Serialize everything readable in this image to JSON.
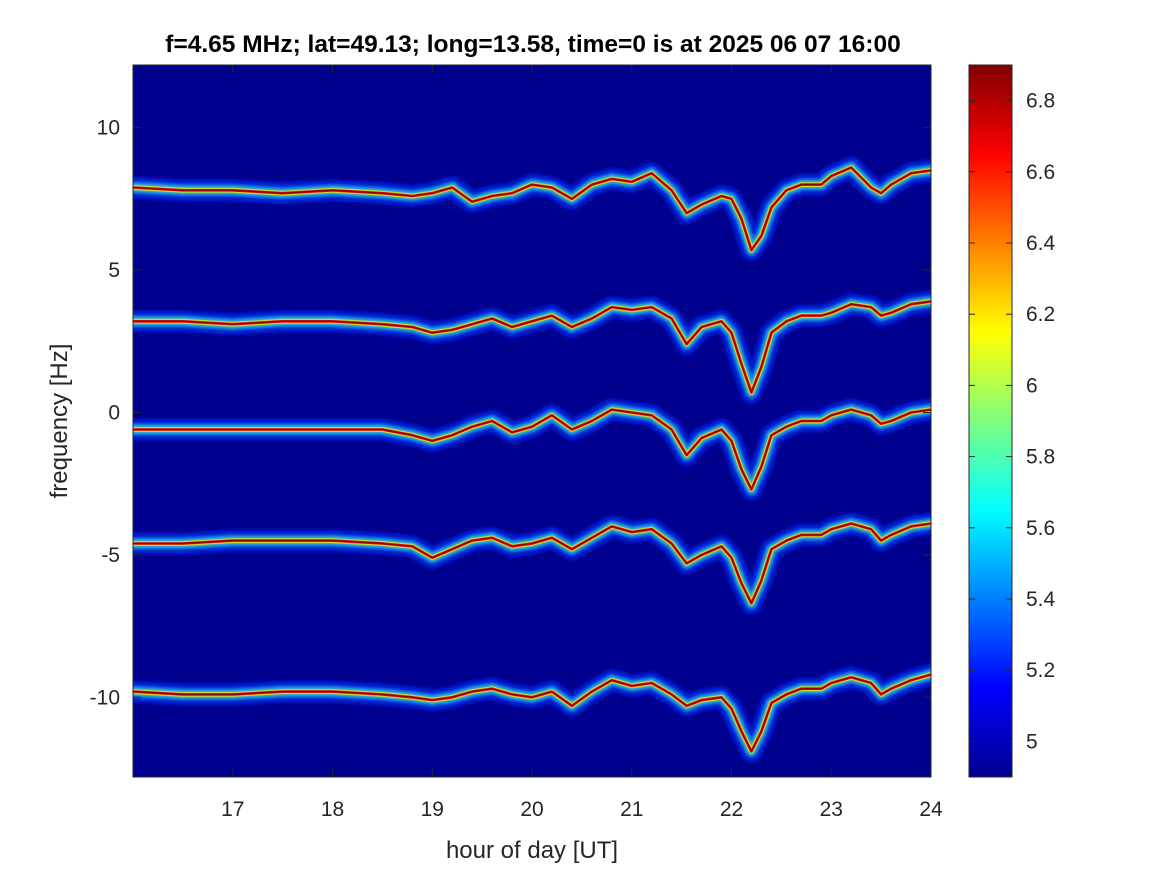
{
  "chart_data": {
    "type": "heatmap",
    "title": "f=4.65 MHz;  lat=49.13; long=13.58, time=0 is at 2025 06 07 16:00",
    "xlabel": "hour of day [UT]",
    "ylabel": "frequency [Hz]",
    "xlim": [
      16,
      24
    ],
    "ylim": [
      -12.8,
      12.2
    ],
    "xticks": [
      17,
      18,
      19,
      20,
      21,
      22,
      23,
      24
    ],
    "xtick_labels": [
      "17",
      "18",
      "19",
      "20",
      "21",
      "22",
      "23",
      "24"
    ],
    "yticks": [
      10,
      5,
      0,
      -5,
      -10
    ],
    "ytick_labels": [
      "10",
      "5",
      "0",
      "-5",
      "-10"
    ],
    "colorbar": {
      "colormap": "jet",
      "range": [
        4.9,
        6.9
      ],
      "ticks": [
        6.8,
        6.6,
        6.4,
        6.2,
        6.0,
        5.8,
        5.6,
        5.4,
        5.2,
        5.0
      ],
      "tick_labels": [
        "6.8",
        "6.6",
        "6.4",
        "6.2",
        "6",
        "5.8",
        "5.6",
        "5.4",
        "5.2",
        "5"
      ]
    },
    "background_color": "#00008f",
    "grid": false,
    "series": [
      {
        "x": [
          16.0,
          16.5,
          17.0,
          17.5,
          18.0,
          18.5,
          18.8,
          19.0,
          19.2,
          19.4,
          19.6,
          19.8,
          20.0,
          20.2,
          20.4,
          20.6,
          20.8,
          21.0,
          21.2,
          21.4,
          21.55,
          21.7,
          21.9,
          22.0,
          22.1,
          22.2,
          22.3,
          22.4,
          22.55,
          22.7,
          22.9,
          23.0,
          23.2,
          23.4,
          23.5,
          23.6,
          23.8,
          24.0
        ],
        "y": [
          7.9,
          7.8,
          7.8,
          7.7,
          7.8,
          7.7,
          7.6,
          7.7,
          7.9,
          7.4,
          7.6,
          7.7,
          8.0,
          7.9,
          7.5,
          8.0,
          8.2,
          8.1,
          8.4,
          7.8,
          7.0,
          7.3,
          7.6,
          7.5,
          6.8,
          5.7,
          6.2,
          7.2,
          7.8,
          8.0,
          8.0,
          8.3,
          8.6,
          7.9,
          7.7,
          8.0,
          8.4,
          8.5
        ]
      },
      {
        "x": [
          16.0,
          16.5,
          17.0,
          17.5,
          18.0,
          18.5,
          18.8,
          19.0,
          19.2,
          19.4,
          19.6,
          19.8,
          20.0,
          20.2,
          20.4,
          20.6,
          20.8,
          21.0,
          21.2,
          21.4,
          21.55,
          21.7,
          21.9,
          22.0,
          22.1,
          22.2,
          22.3,
          22.4,
          22.55,
          22.7,
          22.9,
          23.0,
          23.2,
          23.4,
          23.5,
          23.6,
          23.8,
          24.0
        ],
        "y": [
          3.2,
          3.2,
          3.1,
          3.2,
          3.2,
          3.1,
          3.0,
          2.8,
          2.9,
          3.1,
          3.3,
          3.0,
          3.2,
          3.4,
          3.0,
          3.3,
          3.7,
          3.6,
          3.7,
          3.3,
          2.4,
          3.0,
          3.2,
          2.8,
          1.7,
          0.7,
          1.6,
          2.8,
          3.2,
          3.4,
          3.4,
          3.5,
          3.8,
          3.7,
          3.4,
          3.5,
          3.8,
          3.9
        ]
      },
      {
        "x": [
          16.0,
          16.5,
          17.0,
          17.5,
          18.0,
          18.5,
          18.8,
          19.0,
          19.2,
          19.4,
          19.6,
          19.8,
          20.0,
          20.2,
          20.4,
          20.6,
          20.8,
          21.0,
          21.2,
          21.4,
          21.55,
          21.7,
          21.9,
          22.0,
          22.1,
          22.2,
          22.3,
          22.4,
          22.55,
          22.7,
          22.9,
          23.0,
          23.2,
          23.4,
          23.5,
          23.6,
          23.8,
          24.0
        ],
        "y": [
          -0.6,
          -0.6,
          -0.6,
          -0.6,
          -0.6,
          -0.6,
          -0.8,
          -1.0,
          -0.8,
          -0.5,
          -0.3,
          -0.7,
          -0.5,
          -0.1,
          -0.6,
          -0.3,
          0.1,
          0.0,
          -0.1,
          -0.6,
          -1.5,
          -0.9,
          -0.6,
          -1.0,
          -2.0,
          -2.7,
          -1.9,
          -0.8,
          -0.5,
          -0.3,
          -0.3,
          -0.1,
          0.1,
          -0.1,
          -0.4,
          -0.3,
          0.0,
          0.1
        ]
      },
      {
        "x": [
          16.0,
          16.5,
          17.0,
          17.5,
          18.0,
          18.5,
          18.8,
          19.0,
          19.2,
          19.4,
          19.6,
          19.8,
          20.0,
          20.2,
          20.4,
          20.6,
          20.8,
          21.0,
          21.2,
          21.4,
          21.55,
          21.7,
          21.9,
          22.0,
          22.1,
          22.2,
          22.3,
          22.4,
          22.55,
          22.7,
          22.9,
          23.0,
          23.2,
          23.4,
          23.5,
          23.6,
          23.8,
          24.0
        ],
        "y": [
          -4.6,
          -4.6,
          -4.5,
          -4.5,
          -4.5,
          -4.6,
          -4.7,
          -5.1,
          -4.8,
          -4.5,
          -4.4,
          -4.7,
          -4.6,
          -4.4,
          -4.8,
          -4.4,
          -4.0,
          -4.2,
          -4.1,
          -4.6,
          -5.3,
          -5.0,
          -4.7,
          -5.1,
          -6.0,
          -6.7,
          -5.9,
          -4.8,
          -4.5,
          -4.3,
          -4.3,
          -4.1,
          -3.9,
          -4.1,
          -4.5,
          -4.3,
          -4.0,
          -3.9
        ]
      },
      {
        "x": [
          16.0,
          16.5,
          17.0,
          17.5,
          18.0,
          18.5,
          18.8,
          19.0,
          19.2,
          19.4,
          19.6,
          19.8,
          20.0,
          20.2,
          20.4,
          20.6,
          20.8,
          21.0,
          21.2,
          21.4,
          21.55,
          21.7,
          21.9,
          22.0,
          22.1,
          22.2,
          22.3,
          22.4,
          22.55,
          22.7,
          22.9,
          23.0,
          23.2,
          23.4,
          23.5,
          23.6,
          23.8,
          24.0
        ],
        "y": [
          -9.8,
          -9.9,
          -9.9,
          -9.8,
          -9.8,
          -9.9,
          -10.0,
          -10.1,
          -10.0,
          -9.8,
          -9.7,
          -9.9,
          -10.0,
          -9.8,
          -10.3,
          -9.8,
          -9.4,
          -9.6,
          -9.5,
          -9.9,
          -10.3,
          -10.1,
          -10.0,
          -10.4,
          -11.2,
          -11.9,
          -11.2,
          -10.2,
          -9.9,
          -9.7,
          -9.7,
          -9.5,
          -9.3,
          -9.5,
          -9.9,
          -9.7,
          -9.4,
          -9.2
        ]
      }
    ]
  }
}
